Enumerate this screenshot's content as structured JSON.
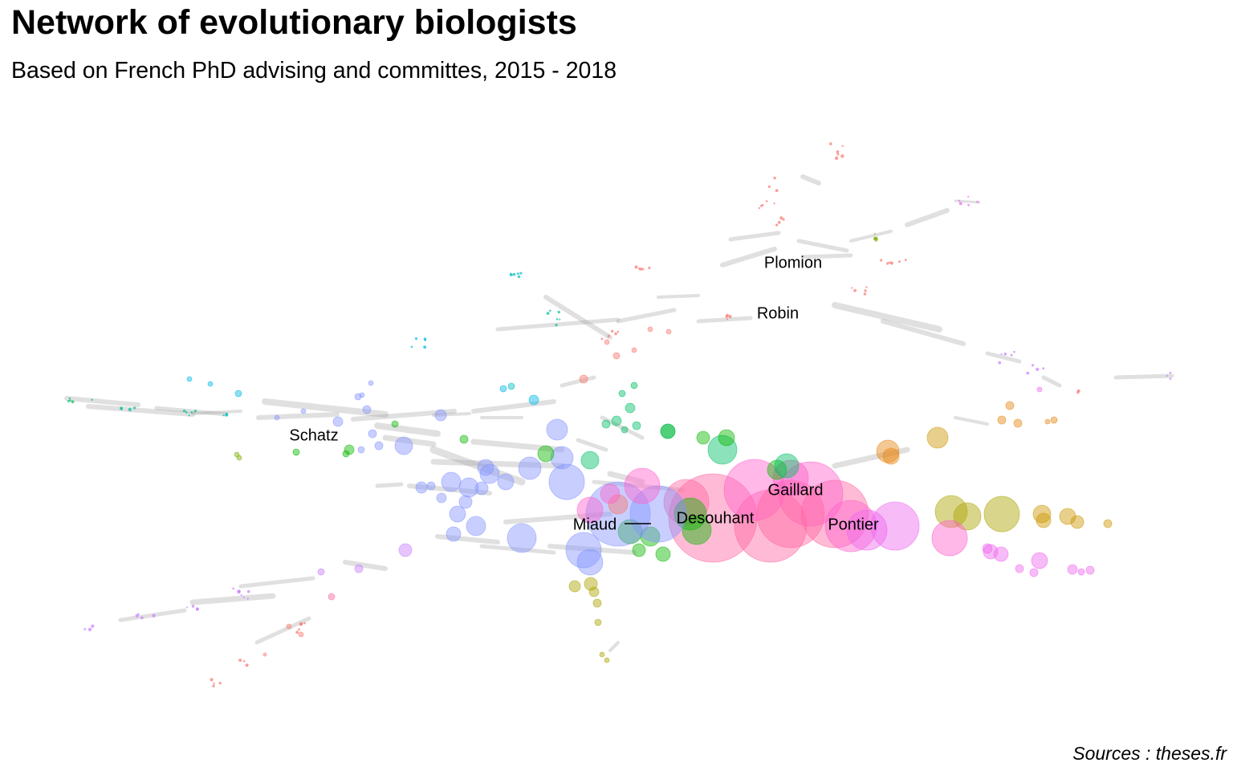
{
  "figure": {
    "title": "Network of evolutionary biologists",
    "subtitle": "Based on French PhD advising and committes, 2015 - 2018",
    "caption": "Sources : theses.fr"
  },
  "chart_data": {
    "type": "network",
    "title": "Network of evolutionary biologists",
    "subtitle": "Based on French PhD advising and committes, 2015 - 2018",
    "caption": "Sources : theses.fr",
    "labeled_nodes": [
      {
        "name": "Plomion"
      },
      {
        "name": "Robin"
      },
      {
        "name": "Schatz"
      },
      {
        "name": "Gaillard"
      },
      {
        "name": "Desouhant"
      },
      {
        "name": "Miaud"
      },
      {
        "name": "Pontier"
      }
    ],
    "community_colors": [
      "#F8766D",
      "#E68613",
      "#CD9600",
      "#ABA300",
      "#7CAE00",
      "#0CB702",
      "#00BE67",
      "#00C19A",
      "#00BFC4",
      "#00B8E7",
      "#00A9FF",
      "#8494FF",
      "#C77CFF",
      "#ED68ED",
      "#FF61CC",
      "#FF68A1"
    ],
    "edge_color": "#999999",
    "grid": false,
    "axes": false
  }
}
